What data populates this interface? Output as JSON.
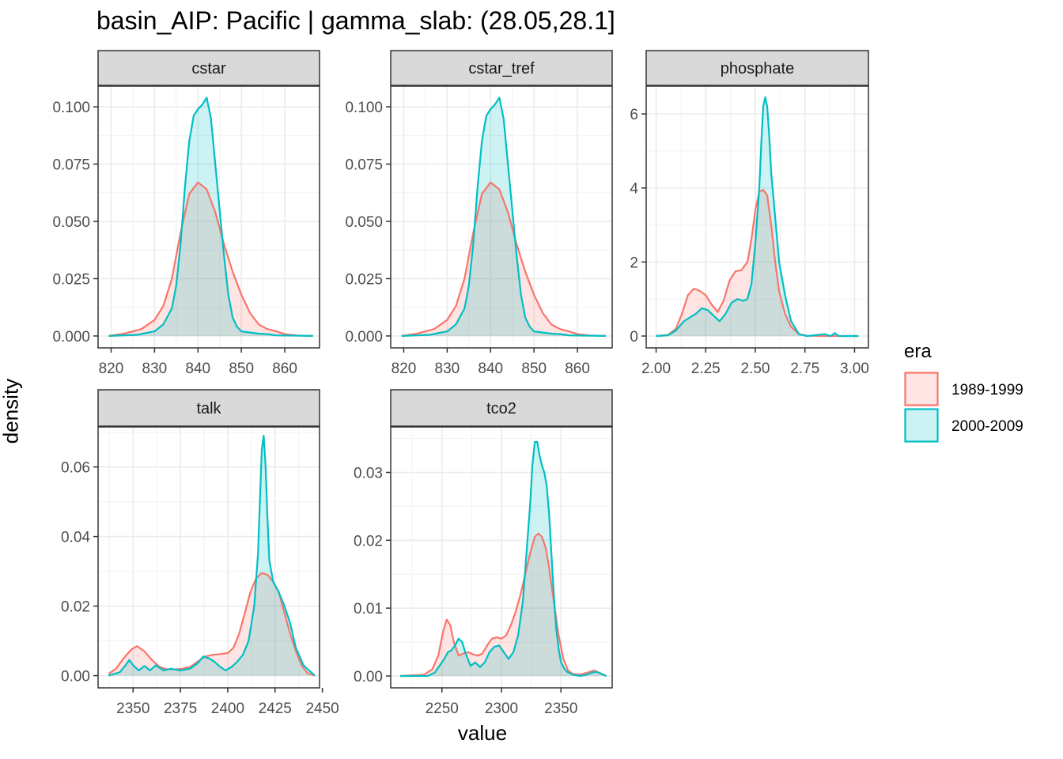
{
  "title": "basin_AIP: Pacific | gamma_slab: (28.05,28.1]",
  "xlabel": "value",
  "ylabel": "density",
  "legend": {
    "title": "era",
    "position": "right",
    "items": [
      {
        "label": "1989-1999",
        "color": "#F8766D"
      },
      {
        "label": "2000-2009",
        "color": "#00BFC4"
      }
    ]
  },
  "chart_data": [
    {
      "type": "area",
      "panel": "cstar",
      "xlim": [
        817,
        868
      ],
      "ylim": [
        -0.0052,
        0.109
      ],
      "xticks": [
        820,
        830,
        840,
        850,
        860
      ],
      "yticks": [
        0.0,
        0.025,
        0.05,
        0.075,
        0.1
      ],
      "yticklabels": [
        "0.000",
        "0.025",
        "0.050",
        "0.075",
        "0.100"
      ],
      "series": [
        {
          "name": "1989-1999",
          "x": [
            819.5,
            823,
            827,
            830,
            832,
            834,
            836,
            838,
            840,
            842,
            844,
            846,
            848,
            850,
            852,
            854,
            856,
            858,
            860,
            863,
            866.5
          ],
          "y": [
            0.0,
            0.001,
            0.003,
            0.007,
            0.013,
            0.025,
            0.045,
            0.062,
            0.067,
            0.064,
            0.054,
            0.04,
            0.028,
            0.018,
            0.01,
            0.005,
            0.003,
            0.002,
            0.0008,
            0.0002,
            0.0
          ]
        },
        {
          "name": "2000-2009",
          "x": [
            819.5,
            826,
            830,
            832,
            834,
            835,
            836,
            837,
            838,
            839,
            840,
            841,
            842,
            843,
            844,
            845,
            846,
            847,
            848,
            849,
            850,
            852,
            854,
            856,
            858,
            866.5
          ],
          "y": [
            0.0,
            0.0005,
            0.002,
            0.005,
            0.012,
            0.022,
            0.04,
            0.065,
            0.085,
            0.096,
            0.099,
            0.101,
            0.104,
            0.095,
            0.075,
            0.055,
            0.035,
            0.018,
            0.008,
            0.004,
            0.002,
            0.0015,
            0.001,
            0.0008,
            0.0003,
            0.0
          ]
        }
      ]
    },
    {
      "type": "area",
      "panel": "cstar_tref",
      "xlim": [
        817,
        868
      ],
      "ylim": [
        -0.0052,
        0.109
      ],
      "xticks": [
        820,
        830,
        840,
        850,
        860
      ],
      "yticks": [
        0.0,
        0.025,
        0.05,
        0.075,
        0.1
      ],
      "yticklabels": [
        "0.000",
        "0.025",
        "0.050",
        "0.075",
        "0.100"
      ],
      "series": [
        {
          "name": "1989-1999",
          "x": [
            819.5,
            823,
            827,
            830,
            832,
            834,
            836,
            838,
            840,
            842,
            844,
            846,
            848,
            850,
            852,
            854,
            856,
            858,
            860,
            863,
            866.5
          ],
          "y": [
            0.0,
            0.001,
            0.003,
            0.007,
            0.013,
            0.025,
            0.045,
            0.062,
            0.067,
            0.064,
            0.054,
            0.04,
            0.028,
            0.018,
            0.01,
            0.005,
            0.003,
            0.002,
            0.0008,
            0.0002,
            0.0
          ]
        },
        {
          "name": "2000-2009",
          "x": [
            819.5,
            826,
            830,
            832,
            834,
            835,
            836,
            837,
            838,
            839,
            840,
            841,
            842,
            843,
            844,
            845,
            846,
            847,
            848,
            849,
            850,
            852,
            854,
            856,
            858,
            866.5
          ],
          "y": [
            0.0,
            0.0005,
            0.002,
            0.005,
            0.012,
            0.022,
            0.04,
            0.065,
            0.085,
            0.096,
            0.099,
            0.101,
            0.104,
            0.095,
            0.075,
            0.055,
            0.035,
            0.018,
            0.008,
            0.004,
            0.002,
            0.0015,
            0.001,
            0.0008,
            0.0003,
            0.0
          ]
        }
      ]
    },
    {
      "type": "area",
      "panel": "phosphate",
      "xlim": [
        1.95,
        3.07
      ],
      "ylim": [
        -0.32,
        6.75
      ],
      "xticks": [
        2.0,
        2.25,
        2.5,
        2.75,
        3.0
      ],
      "yticks": [
        0,
        2,
        4,
        6
      ],
      "yticklabels": [
        "0",
        "2",
        "4",
        "6"
      ],
      "series": [
        {
          "name": "1989-1999",
          "x": [
            2.0,
            2.06,
            2.1,
            2.13,
            2.16,
            2.19,
            2.22,
            2.25,
            2.28,
            2.31,
            2.34,
            2.37,
            2.4,
            2.43,
            2.46,
            2.48,
            2.5,
            2.52,
            2.54,
            2.56,
            2.58,
            2.6,
            2.62,
            2.65,
            2.68,
            2.72,
            2.76,
            2.85,
            3.02
          ],
          "y": [
            0.0,
            0.03,
            0.2,
            0.6,
            1.1,
            1.28,
            1.22,
            1.1,
            0.85,
            0.65,
            0.95,
            1.5,
            1.75,
            1.78,
            2.0,
            2.6,
            3.4,
            3.9,
            3.95,
            3.8,
            3.0,
            2.0,
            1.2,
            0.6,
            0.25,
            0.05,
            0.01,
            0.0,
            0.0
          ]
        },
        {
          "name": "2000-2009",
          "x": [
            2.0,
            2.06,
            2.1,
            2.14,
            2.17,
            2.2,
            2.23,
            2.26,
            2.29,
            2.32,
            2.35,
            2.38,
            2.41,
            2.44,
            2.46,
            2.48,
            2.5,
            2.52,
            2.53,
            2.54,
            2.55,
            2.56,
            2.57,
            2.58,
            2.6,
            2.62,
            2.65,
            2.68,
            2.72,
            2.76,
            2.85,
            2.88,
            2.9,
            2.92,
            3.02
          ],
          "y": [
            0.0,
            0.02,
            0.15,
            0.4,
            0.5,
            0.6,
            0.75,
            0.7,
            0.55,
            0.4,
            0.6,
            0.9,
            1.0,
            0.95,
            1.0,
            1.4,
            2.5,
            4.0,
            5.2,
            6.2,
            6.45,
            6.2,
            5.4,
            4.4,
            3.2,
            2.0,
            1.1,
            0.4,
            0.05,
            0.0,
            0.05,
            0.0,
            0.08,
            0.0,
            0.0
          ]
        }
      ]
    },
    {
      "type": "area",
      "panel": "talk",
      "xlim": [
        2331.5,
        2448.5
      ],
      "ylim": [
        -0.0035,
        0.0715
      ],
      "xticks": [
        2350,
        2375,
        2400,
        2425,
        2450
      ],
      "yticks": [
        0.0,
        0.02,
        0.04,
        0.06
      ],
      "yticklabels": [
        "0.00",
        "0.02",
        "0.04",
        "0.06"
      ],
      "series": [
        {
          "name": "1989-1999",
          "x": [
            2337,
            2341,
            2345,
            2349,
            2352,
            2356,
            2360,
            2364,
            2368,
            2372,
            2376,
            2380,
            2384,
            2388,
            2392,
            2396,
            2400,
            2403,
            2406,
            2409,
            2412,
            2415,
            2418,
            2421,
            2424,
            2427,
            2430,
            2433,
            2436,
            2439,
            2442,
            2446
          ],
          "y": [
            0.0005,
            0.002,
            0.005,
            0.0075,
            0.0085,
            0.007,
            0.0045,
            0.0025,
            0.0018,
            0.0018,
            0.002,
            0.0025,
            0.004,
            0.0055,
            0.006,
            0.0062,
            0.0065,
            0.008,
            0.012,
            0.018,
            0.024,
            0.028,
            0.0295,
            0.029,
            0.027,
            0.024,
            0.018,
            0.012,
            0.007,
            0.003,
            0.0008,
            0.0
          ]
        },
        {
          "name": "2000-2009",
          "x": [
            2337,
            2343,
            2346,
            2348,
            2350,
            2353,
            2356,
            2359,
            2362,
            2366,
            2370,
            2375,
            2380,
            2384,
            2387,
            2390,
            2393,
            2396,
            2399,
            2402,
            2405,
            2408,
            2411,
            2414,
            2416,
            2417,
            2418,
            2419,
            2420,
            2421,
            2422,
            2424,
            2427,
            2430,
            2433,
            2436,
            2440,
            2446
          ],
          "y": [
            0.0,
            0.001,
            0.003,
            0.0045,
            0.003,
            0.0015,
            0.0028,
            0.0015,
            0.003,
            0.0015,
            0.002,
            0.0015,
            0.002,
            0.0035,
            0.0055,
            0.005,
            0.004,
            0.0025,
            0.0015,
            0.0025,
            0.004,
            0.006,
            0.01,
            0.02,
            0.035,
            0.05,
            0.065,
            0.069,
            0.06,
            0.045,
            0.033,
            0.027,
            0.024,
            0.02,
            0.015,
            0.008,
            0.003,
            0.0
          ]
        }
      ]
    },
    {
      "type": "area",
      "panel": "tco2",
      "xlim": [
        2207,
        2393
      ],
      "ylim": [
        -0.00175,
        0.0367
      ],
      "xticks": [
        2250,
        2300,
        2350
      ],
      "yticks": [
        0.0,
        0.01,
        0.02,
        0.03
      ],
      "yticklabels": [
        "0.00",
        "0.01",
        "0.02",
        "0.03"
      ],
      "series": [
        {
          "name": "1989-1999",
          "x": [
            2215,
            2235,
            2242,
            2247,
            2251,
            2254,
            2257,
            2260,
            2264,
            2268,
            2272,
            2276,
            2280,
            2284,
            2288,
            2292,
            2296,
            2300,
            2304,
            2308,
            2312,
            2316,
            2320,
            2324,
            2328,
            2331,
            2334,
            2337,
            2340,
            2344,
            2348,
            2352,
            2356,
            2360,
            2366,
            2372,
            2378,
            2382,
            2388
          ],
          "y": [
            0.0,
            0.0002,
            0.001,
            0.003,
            0.0065,
            0.0083,
            0.0075,
            0.005,
            0.003,
            0.0033,
            0.0035,
            0.0032,
            0.003,
            0.0033,
            0.0045,
            0.0055,
            0.0057,
            0.0055,
            0.006,
            0.0075,
            0.0095,
            0.012,
            0.015,
            0.018,
            0.0205,
            0.021,
            0.0205,
            0.019,
            0.016,
            0.011,
            0.006,
            0.0025,
            0.0008,
            0.0003,
            0.0002,
            0.0005,
            0.0008,
            0.0005,
            0.0
          ]
        },
        {
          "name": "2000-2009",
          "x": [
            2215,
            2238,
            2244,
            2248,
            2252,
            2255,
            2258,
            2261,
            2264,
            2267,
            2270,
            2274,
            2278,
            2282,
            2286,
            2290,
            2294,
            2298,
            2302,
            2306,
            2310,
            2314,
            2318,
            2321,
            2324,
            2326,
            2328,
            2330,
            2332,
            2334,
            2336,
            2338,
            2340,
            2342,
            2344,
            2346,
            2348,
            2350,
            2353,
            2356,
            2360,
            2366,
            2372,
            2376,
            2380,
            2384,
            2388
          ],
          "y": [
            0.0,
            0.0,
            0.0005,
            0.0015,
            0.0025,
            0.0035,
            0.0038,
            0.0045,
            0.0055,
            0.005,
            0.0033,
            0.0015,
            0.002,
            0.0013,
            0.002,
            0.0035,
            0.0043,
            0.0045,
            0.0035,
            0.0025,
            0.0035,
            0.006,
            0.011,
            0.018,
            0.025,
            0.031,
            0.0345,
            0.0345,
            0.0325,
            0.031,
            0.03,
            0.028,
            0.024,
            0.018,
            0.012,
            0.007,
            0.004,
            0.002,
            0.001,
            0.0005,
            0.0002,
            0.0,
            0.0002,
            0.0005,
            0.0006,
            0.0003,
            0.0
          ]
        }
      ]
    }
  ]
}
